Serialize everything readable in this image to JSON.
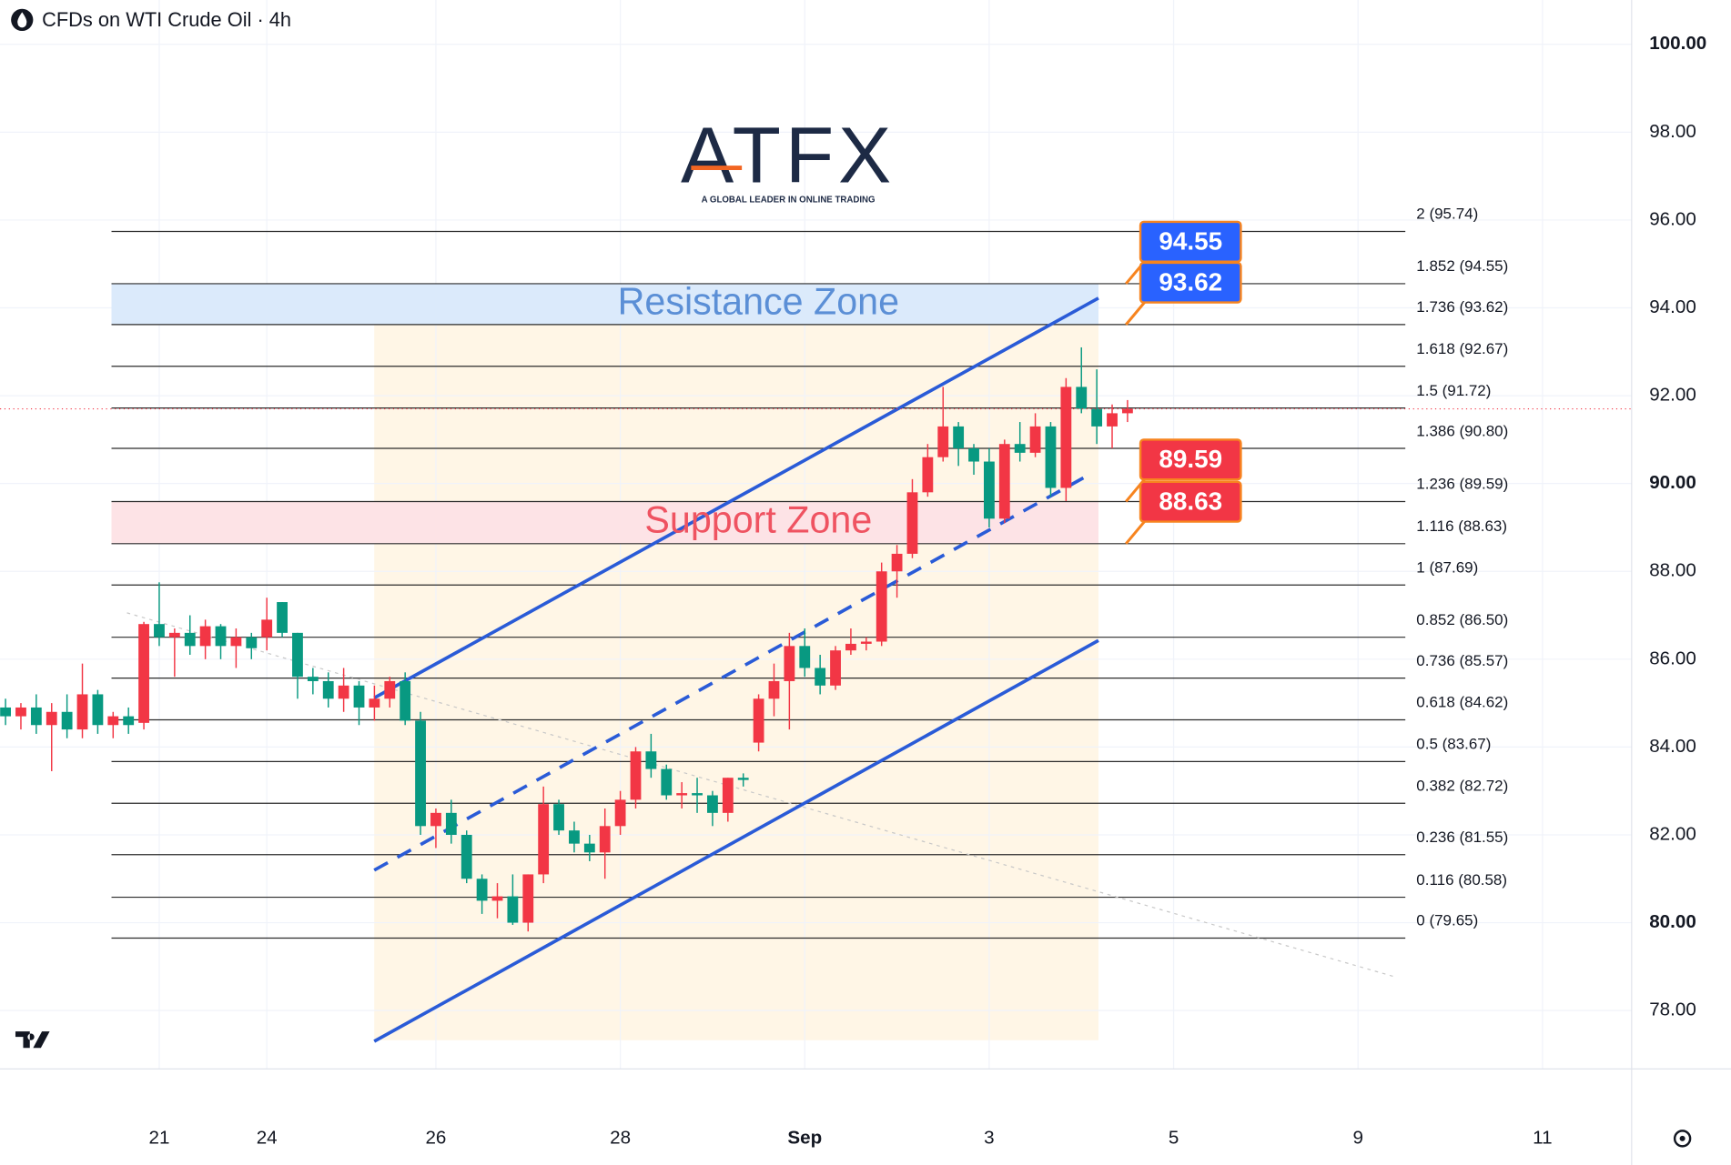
{
  "chart_data": {
    "type": "candlestick",
    "title": "CFDs on WTI Crude Oil · 4h",
    "logo": {
      "text": "ATFX",
      "tagline": "A GLOBAL LEADER IN ONLINE TRADING"
    },
    "up_color": "#f23645",
    "down_color": "#089981",
    "open": [
      84.9,
      84.7,
      84.9,
      84.5,
      84.8,
      84.4,
      85.2,
      84.5,
      84.7,
      84.55,
      86.8,
      86.5,
      86.6,
      86.3,
      86.75,
      86.3,
      86.5,
      86.5,
      87.3,
      86.6,
      85.6,
      85.5,
      85.1,
      85.4,
      84.9,
      85.1,
      85.5,
      84.6,
      82.2,
      82.5,
      82.0,
      81.0,
      80.5,
      80.6,
      80.0,
      81.1,
      82.7,
      82.1,
      81.8,
      81.6,
      82.2,
      82.8,
      83.9,
      83.5,
      82.9,
      82.95,
      82.9,
      82.5,
      83.3,
      84.1,
      85.1,
      85.5,
      86.3,
      85.8,
      85.4,
      86.2,
      86.35,
      86.4,
      88.0,
      88.4,
      89.8,
      90.6,
      91.3,
      90.8,
      90.5,
      89.2,
      90.9,
      90.7,
      91.3,
      89.9,
      92.2,
      91.7,
      91.3,
      91.6
    ],
    "high": [
      85.1,
      85.0,
      85.2,
      85.0,
      85.2,
      85.9,
      85.3,
      84.8,
      84.9,
      86.85,
      87.75,
      86.7,
      87.0,
      86.9,
      86.8,
      86.7,
      86.6,
      87.4,
      87.3,
      86.6,
      85.8,
      85.7,
      85.8,
      85.5,
      85.4,
      85.6,
      85.7,
      84.8,
      82.6,
      82.8,
      82.1,
      81.1,
      80.9,
      81.1,
      81.1,
      83.1,
      82.8,
      82.3,
      82.0,
      82.6,
      83.0,
      84.0,
      84.3,
      83.6,
      83.2,
      83.3,
      83.0,
      83.3,
      83.4,
      85.2,
      85.9,
      86.6,
      86.7,
      86.1,
      86.3,
      86.7,
      86.5,
      88.2,
      88.6,
      90.1,
      90.9,
      92.2,
      91.4,
      90.9,
      90.8,
      91.0,
      91.4,
      91.6,
      91.4,
      92.4,
      93.1,
      92.6,
      91.8,
      91.9
    ],
    "low": [
      84.5,
      84.4,
      84.3,
      83.45,
      84.2,
      84.2,
      84.3,
      84.2,
      84.3,
      84.4,
      86.3,
      85.6,
      86.1,
      86.0,
      86.0,
      85.8,
      86.0,
      86.2,
      86.5,
      85.1,
      85.2,
      84.9,
      84.8,
      84.5,
      84.6,
      84.9,
      84.5,
      82.0,
      81.7,
      81.8,
      80.9,
      80.2,
      80.1,
      79.95,
      79.8,
      80.9,
      82.0,
      81.6,
      81.4,
      81.0,
      82.0,
      82.6,
      83.3,
      82.8,
      82.6,
      82.5,
      82.2,
      82.3,
      83.1,
      83.9,
      84.7,
      84.4,
      85.6,
      85.2,
      85.3,
      86.1,
      86.2,
      86.3,
      87.4,
      88.3,
      89.7,
      90.5,
      90.4,
      90.2,
      89.0,
      89.1,
      90.5,
      90.6,
      89.7,
      89.6,
      91.6,
      90.9,
      90.8,
      91.4
    ],
    "close": [
      84.7,
      84.9,
      84.5,
      84.8,
      84.4,
      85.2,
      84.5,
      84.7,
      84.5,
      86.8,
      86.5,
      86.6,
      86.3,
      86.75,
      86.3,
      86.5,
      86.25,
      86.9,
      86.6,
      85.6,
      85.5,
      85.1,
      85.4,
      84.9,
      85.1,
      85.5,
      84.6,
      82.2,
      82.5,
      82.0,
      81.0,
      80.5,
      80.6,
      80.0,
      81.1,
      82.7,
      82.1,
      81.8,
      81.6,
      82.2,
      82.8,
      83.9,
      83.5,
      82.9,
      82.95,
      82.9,
      82.5,
      83.3,
      83.25,
      85.1,
      85.5,
      86.3,
      85.8,
      85.4,
      86.2,
      86.35,
      86.4,
      88.0,
      88.4,
      89.8,
      90.6,
      91.3,
      90.8,
      90.5,
      89.2,
      90.9,
      90.7,
      91.3,
      89.9,
      92.2,
      91.7,
      91.3,
      91.6,
      91.7
    ],
    "xlim": [
      -0.36,
      105.8
    ],
    "xticks": [
      {
        "value": 10,
        "label": "21"
      },
      {
        "value": 17,
        "label": "24"
      },
      {
        "value": 28,
        "label": "26"
      },
      {
        "value": 40,
        "label": "28"
      },
      {
        "value": 52,
        "label": "Sep"
      },
      {
        "value": 64,
        "label": "3"
      },
      {
        "value": 76,
        "label": "5"
      },
      {
        "value": 88,
        "label": "9"
      },
      {
        "value": 100,
        "label": "11"
      }
    ],
    "ylim": [
      76.67,
      101.01
    ],
    "yticks": [
      {
        "value": 78,
        "label": "78.00"
      },
      {
        "value": 80,
        "label": "80.00"
      },
      {
        "value": 82,
        "label": "82.00"
      },
      {
        "value": 84,
        "label": "84.00"
      },
      {
        "value": 86,
        "label": "86.00"
      },
      {
        "value": 88,
        "label": "88.00"
      },
      {
        "value": 90,
        "label": "90.00"
      },
      {
        "value": 92,
        "label": "92.00"
      },
      {
        "value": 94,
        "label": "94.00"
      },
      {
        "value": 96,
        "label": "96.00"
      },
      {
        "value": 98,
        "label": "98.00"
      },
      {
        "value": 100,
        "label": "100.00"
      }
    ],
    "grid": true,
    "fib_levels": [
      {
        "value": 95.74,
        "label": "2 (95.74)"
      },
      {
        "value": 94.55,
        "label": "1.852 (94.55)"
      },
      {
        "value": 93.62,
        "label": "1.736 (93.62)"
      },
      {
        "value": 92.67,
        "label": "1.618 (92.67)"
      },
      {
        "value": 91.72,
        "label": "1.5 (91.72)"
      },
      {
        "value": 90.8,
        "label": "1.386 (90.80)"
      },
      {
        "value": 89.59,
        "label": "1.236 (89.59)"
      },
      {
        "value": 88.63,
        "label": "1.116 (88.63)"
      },
      {
        "value": 87.69,
        "label": "1 (87.69)"
      },
      {
        "value": 86.5,
        "label": "0.852 (86.50)"
      },
      {
        "value": 85.57,
        "label": "0.736 (85.57)"
      },
      {
        "value": 84.62,
        "label": "0.618 (84.62)"
      },
      {
        "value": 83.67,
        "label": "0.5 (83.67)"
      },
      {
        "value": 82.72,
        "label": "0.382 (82.72)"
      },
      {
        "value": 81.55,
        "label": "0.236 (81.55)"
      },
      {
        "value": 80.58,
        "label": "0.116 (80.58)"
      },
      {
        "value": 79.65,
        "label": "0 (79.65)"
      }
    ],
    "zones": [
      {
        "name": "Resistance Zone",
        "low": 93.62,
        "high": 94.55,
        "color": "#dbeafb",
        "text_color": "#5b8fd6"
      },
      {
        "name": "Support Zone",
        "low": 88.63,
        "high": 89.59,
        "color": "#fde3e6",
        "text_color": "#ef5361"
      }
    ],
    "callouts": [
      {
        "value": 94.55,
        "color": "#2962ff"
      },
      {
        "value": 93.62,
        "color": "#2962ff"
      },
      {
        "value": 89.59,
        "color": "#f23645"
      },
      {
        "value": 88.63,
        "color": "#f23645"
      }
    ]
  }
}
